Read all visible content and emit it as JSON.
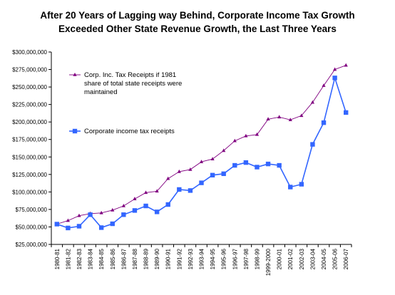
{
  "chart_data": {
    "type": "line",
    "title_line1": "After 20 Years of Lagging way Behind, Corporate Income Tax Growth",
    "title_line2": "Exceeded Other State Revenue Growth, the Last Three Years",
    "ylim": [
      25000000,
      300000000
    ],
    "y_ticks": [
      "$25,000,000",
      "$50,000,000",
      "$75,000,000",
      "$100,000,000",
      "$125,000,000",
      "$150,000,000",
      "$175,000,000",
      "$200,000,000",
      "$225,000,000",
      "$250,000,000",
      "$275,000,000",
      "$300,000,000"
    ],
    "y_tick_values": [
      25000000,
      50000000,
      75000000,
      100000000,
      125000000,
      150000000,
      175000000,
      200000000,
      225000000,
      250000000,
      275000000,
      300000000
    ],
    "categories": [
      "1980-81",
      "1981-82",
      "1982-83",
      "1983-84",
      "1984-85",
      "1985-86",
      "1986-87",
      "1987-88",
      "1988-89",
      "1989-90",
      "1990-91",
      "1991-92",
      "1992-93",
      "1993-94",
      "1994-95",
      "1995-96",
      "1996-97",
      "1997-98",
      "1998-99",
      "1999-2000",
      "2000-01",
      "2001-02",
      "2002-03",
      "2003-04",
      "2004-05",
      "2005-06",
      "2006-07"
    ],
    "legend_position": "top-left",
    "grid": false,
    "series": [
      {
        "legend_lines": [
          "Corp. Inc. Tax Receipts if 1981",
          "share of total state receipts were",
          "maintained"
        ],
        "color": "#800080",
        "marker": "triangle",
        "values": [
          54000000,
          59000000,
          66000000,
          69000000,
          70000000,
          74000000,
          80000000,
          90000000,
          99000000,
          101000000,
          119000000,
          129000000,
          132000000,
          143000000,
          147000000,
          159000000,
          173000000,
          180000000,
          182000000,
          204000000,
          207000000,
          203000000,
          209000000,
          228000000,
          252000000,
          275000000,
          281000000
        ]
      },
      {
        "legend_lines": [
          "Corporate income tax receipts"
        ],
        "color": "#3366ff",
        "marker": "square",
        "values": [
          54000000,
          48500000,
          51000000,
          67500000,
          49000000,
          54500000,
          67500000,
          73500000,
          80000000,
          71500000,
          82000000,
          103500000,
          102000000,
          113000000,
          124000000,
          126000000,
          138000000,
          142000000,
          135500000,
          140000000,
          138000000,
          107000000,
          111000000,
          168000000,
          199000000,
          263000000,
          213500000
        ]
      }
    ]
  }
}
